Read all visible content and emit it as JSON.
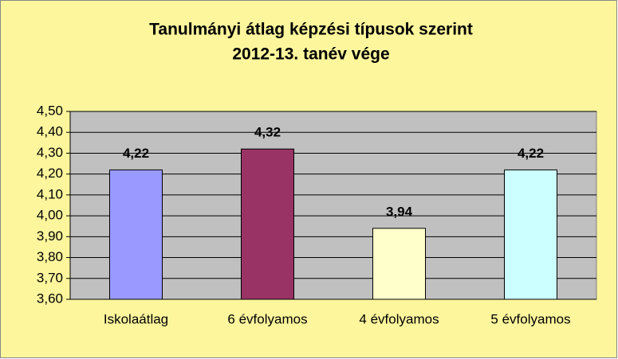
{
  "chart_data": {
    "type": "bar",
    "title": "Tanulmányi átlag képzési típusok szerint",
    "subtitle": "2012-13. tanév vége",
    "categories": [
      "Iskolaátlag",
      "6 évfolyamos",
      "4 évfolyamos",
      "5 évfolyamos"
    ],
    "values": [
      4.22,
      4.32,
      3.94,
      4.22
    ],
    "value_labels": [
      "4,22",
      "4,32",
      "3,94",
      "4,22"
    ],
    "colors": [
      "#9999ff",
      "#993366",
      "#ffffcc",
      "#ccffff"
    ],
    "ylim": [
      3.6,
      4.5
    ],
    "yticks": [
      {
        "value": 3.6,
        "label": "3,60"
      },
      {
        "value": 3.7,
        "label": "3,70"
      },
      {
        "value": 3.8,
        "label": "3,80"
      },
      {
        "value": 3.9,
        "label": "3,90"
      },
      {
        "value": 4.0,
        "label": "4,00"
      },
      {
        "value": 4.1,
        "label": "4,10"
      },
      {
        "value": 4.2,
        "label": "4,20"
      },
      {
        "value": 4.3,
        "label": "4,30"
      },
      {
        "value": 4.4,
        "label": "4,40"
      },
      {
        "value": 4.5,
        "label": "4,50"
      }
    ],
    "grid": true
  }
}
